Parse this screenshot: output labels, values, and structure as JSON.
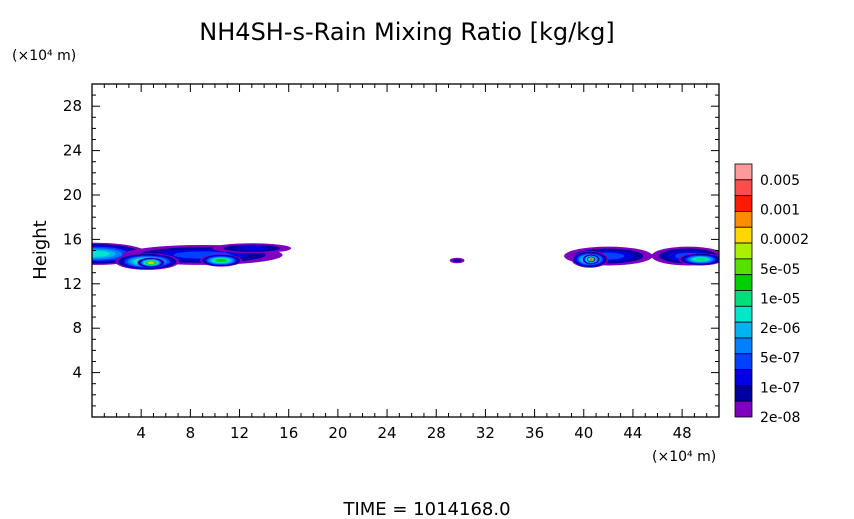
{
  "chart_data": {
    "type": "heatmap",
    "title": "NH4SH-s-Rain Mixing Ratio [kg/kg]",
    "ylabel": "Height",
    "y_unit": "(×10⁴ m)",
    "x_unit": "(×10⁴ m)",
    "xlim": [
      0,
      51
    ],
    "ylim": [
      0,
      30
    ],
    "x_ticks": [
      4,
      8,
      12,
      16,
      20,
      24,
      28,
      32,
      36,
      40,
      44,
      48
    ],
    "y_ticks": [
      4,
      8,
      12,
      16,
      20,
      24,
      28
    ],
    "colorbar": {
      "labels": [
        "0.005",
        "0.001",
        "0.0002",
        "5e-05",
        "1e-05",
        "2e-06",
        "5e-07",
        "1e-07",
        "2e-08"
      ],
      "colors": [
        "#ff9a9a",
        "#ff4d4d",
        "#ff1a00",
        "#ff8c00",
        "#ffd700",
        "#aaf000",
        "#55e000",
        "#00d000",
        "#00e07a",
        "#00e8c8",
        "#00b4f0",
        "#0080ff",
        "#0040ff",
        "#0000e0",
        "#0000a0",
        "#7f00bf"
      ]
    },
    "blobs": [
      {
        "x": 0.3,
        "y": 14.7,
        "rx": 4.2,
        "ry": 1.0,
        "level": 6
      },
      {
        "x": 9.0,
        "y": 14.6,
        "rx": 6.5,
        "ry": 0.9,
        "level": 3
      },
      {
        "x": 13.0,
        "y": 15.2,
        "rx": 3.2,
        "ry": 0.45,
        "level": 2
      },
      {
        "x": 4.5,
        "y": 14.0,
        "rx": 2.6,
        "ry": 0.75,
        "level": 8
      },
      {
        "x": 4.8,
        "y": 13.9,
        "rx": 1.1,
        "ry": 0.45,
        "level": 10
      },
      {
        "x": 10.5,
        "y": 14.1,
        "rx": 1.7,
        "ry": 0.55,
        "level": 8
      },
      {
        "x": 29.7,
        "y": 14.1,
        "rx": 0.6,
        "ry": 0.25,
        "level": 1
      },
      {
        "x": 42.0,
        "y": 14.5,
        "rx": 3.6,
        "ry": 0.85,
        "level": 3
      },
      {
        "x": 40.5,
        "y": 14.2,
        "rx": 1.5,
        "ry": 0.75,
        "level": 8
      },
      {
        "x": 40.6,
        "y": 14.2,
        "rx": 0.7,
        "ry": 0.45,
        "level": 12
      },
      {
        "x": 40.6,
        "y": 14.2,
        "rx": 0.35,
        "ry": 0.25,
        "level": 14
      },
      {
        "x": 48.5,
        "y": 14.5,
        "rx": 3.0,
        "ry": 0.85,
        "level": 3
      },
      {
        "x": 49.5,
        "y": 14.2,
        "rx": 1.8,
        "ry": 0.55,
        "level": 7
      }
    ]
  },
  "time_label": "TIME =  1014168.0"
}
